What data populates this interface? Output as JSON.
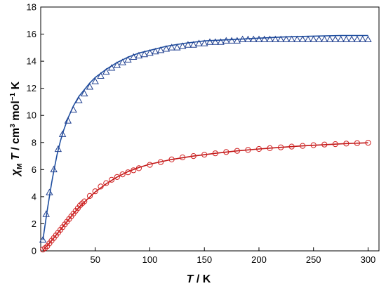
{
  "chart_data": {
    "type": "scatter",
    "xlabel": {
      "main": "T",
      "suffix": " / K"
    },
    "ylabel": {
      "chi": "χ",
      "chi_sub": "M",
      "T": " T",
      "unit_a": " / cm",
      "sup3": "3",
      "unit_b": " mol",
      "supm1": "−1",
      "unit_c": " K"
    },
    "xlim": [
      0,
      310
    ],
    "ylim": [
      0,
      18
    ],
    "xticks": [
      50,
      100,
      150,
      200,
      250,
      300
    ],
    "yticks": [
      0,
      2,
      4,
      6,
      8,
      10,
      12,
      14,
      16,
      18
    ],
    "grid": false,
    "legend": "none",
    "series": [
      {
        "marker": "triangle",
        "color": "#1f3f8f",
        "fit_color": "#1f4fa0",
        "x": [
          2,
          5,
          8,
          12,
          16,
          20,
          25,
          30,
          35,
          40,
          45,
          50,
          55,
          60,
          65,
          70,
          75,
          80,
          85,
          90,
          95,
          100,
          105,
          110,
          115,
          120,
          125,
          130,
          135,
          140,
          145,
          150,
          155,
          160,
          165,
          170,
          175,
          180,
          185,
          190,
          195,
          200,
          205,
          210,
          215,
          220,
          225,
          230,
          235,
          240,
          245,
          250,
          255,
          260,
          265,
          270,
          275,
          280,
          285,
          290,
          295,
          300
        ],
        "y": [
          0.8,
          2.7,
          4.3,
          6.0,
          7.5,
          8.6,
          9.6,
          10.4,
          11.1,
          11.6,
          12.1,
          12.5,
          12.9,
          13.2,
          13.5,
          13.7,
          13.9,
          14.1,
          14.3,
          14.4,
          14.5,
          14.6,
          14.7,
          14.8,
          14.9,
          15.0,
          15.0,
          15.1,
          15.2,
          15.2,
          15.3,
          15.3,
          15.4,
          15.4,
          15.4,
          15.5,
          15.5,
          15.5,
          15.6,
          15.6,
          15.6,
          15.6,
          15.6,
          15.6,
          15.6,
          15.6,
          15.6,
          15.6,
          15.6,
          15.6,
          15.6,
          15.6,
          15.6,
          15.6,
          15.6,
          15.6,
          15.6,
          15.6,
          15.6,
          15.6,
          15.6,
          15.6
        ],
        "fit_x": [
          2,
          4,
          6,
          8,
          10,
          12,
          15,
          18,
          21,
          25,
          30,
          35,
          40,
          45,
          50,
          60,
          70,
          80,
          90,
          100,
          115,
          130,
          150,
          175,
          200,
          225,
          250,
          275,
          300
        ],
        "fit_y": [
          0.8,
          1.9,
          3.0,
          4.0,
          5.0,
          5.9,
          7.1,
          8.1,
          8.9,
          9.8,
          10.7,
          11.4,
          11.9,
          12.4,
          12.8,
          13.4,
          13.9,
          14.3,
          14.6,
          14.8,
          15.1,
          15.3,
          15.5,
          15.6,
          15.7,
          15.8,
          15.85,
          15.9,
          15.9
        ]
      },
      {
        "marker": "circle",
        "color": "#d02020",
        "fit_color": "#c01818",
        "x": [
          2,
          4,
          6,
          8,
          10,
          12,
          14,
          16,
          18,
          20,
          22,
          24,
          26,
          28,
          30,
          32,
          34,
          36,
          38,
          40,
          45,
          50,
          55,
          60,
          65,
          70,
          75,
          80,
          85,
          90,
          100,
          110,
          120,
          130,
          140,
          150,
          160,
          170,
          180,
          190,
          200,
          210,
          220,
          230,
          240,
          250,
          260,
          270,
          280,
          290,
          300
        ],
        "y": [
          0.1,
          0.2,
          0.35,
          0.55,
          0.75,
          0.95,
          1.15,
          1.35,
          1.55,
          1.75,
          1.95,
          2.15,
          2.35,
          2.55,
          2.75,
          2.95,
          3.15,
          3.35,
          3.5,
          3.65,
          4.05,
          4.4,
          4.75,
          5.0,
          5.25,
          5.45,
          5.65,
          5.8,
          5.95,
          6.1,
          6.35,
          6.55,
          6.75,
          6.9,
          7.0,
          7.1,
          7.2,
          7.3,
          7.38,
          7.45,
          7.52,
          7.58,
          7.64,
          7.7,
          7.75,
          7.8,
          7.85,
          7.88,
          7.92,
          7.95,
          7.98
        ],
        "fit_x": [
          2,
          5,
          10,
          15,
          20,
          25,
          30,
          35,
          40,
          50,
          60,
          70,
          80,
          90,
          100,
          120,
          140,
          160,
          180,
          200,
          220,
          240,
          260,
          280,
          300
        ],
        "fit_y": [
          0.05,
          0.3,
          0.75,
          1.25,
          1.75,
          2.25,
          2.75,
          3.2,
          3.6,
          4.35,
          4.95,
          5.45,
          5.85,
          6.15,
          6.4,
          6.75,
          7.0,
          7.2,
          7.38,
          7.52,
          7.64,
          7.75,
          7.84,
          7.92,
          7.98
        ]
      }
    ]
  }
}
